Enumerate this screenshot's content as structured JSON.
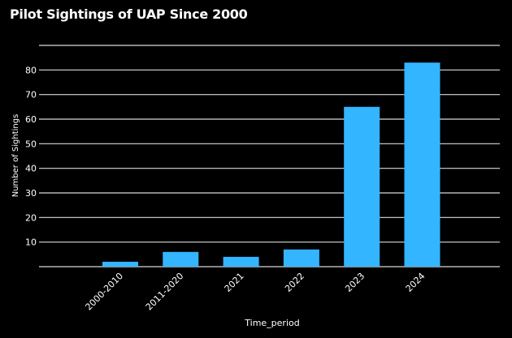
{
  "chart_data": {
    "type": "bar",
    "title": "Pilot Sightings of UAP Since 2000",
    "xlabel": "Time_period",
    "ylabel": "Number of Sightings",
    "categories": [
      "2000-2010",
      "2011-2020",
      "2021",
      "2022",
      "2023",
      "2024"
    ],
    "values": [
      2,
      6,
      4,
      7,
      65,
      83
    ],
    "ylim": [
      0,
      90
    ],
    "yticks": [
      10,
      20,
      30,
      40,
      50,
      60,
      70,
      80
    ],
    "grid": true,
    "colors": {
      "bar": "#33b5ff",
      "background": "#000000",
      "text": "#ffffff",
      "grid": "#d9d9d9"
    }
  }
}
